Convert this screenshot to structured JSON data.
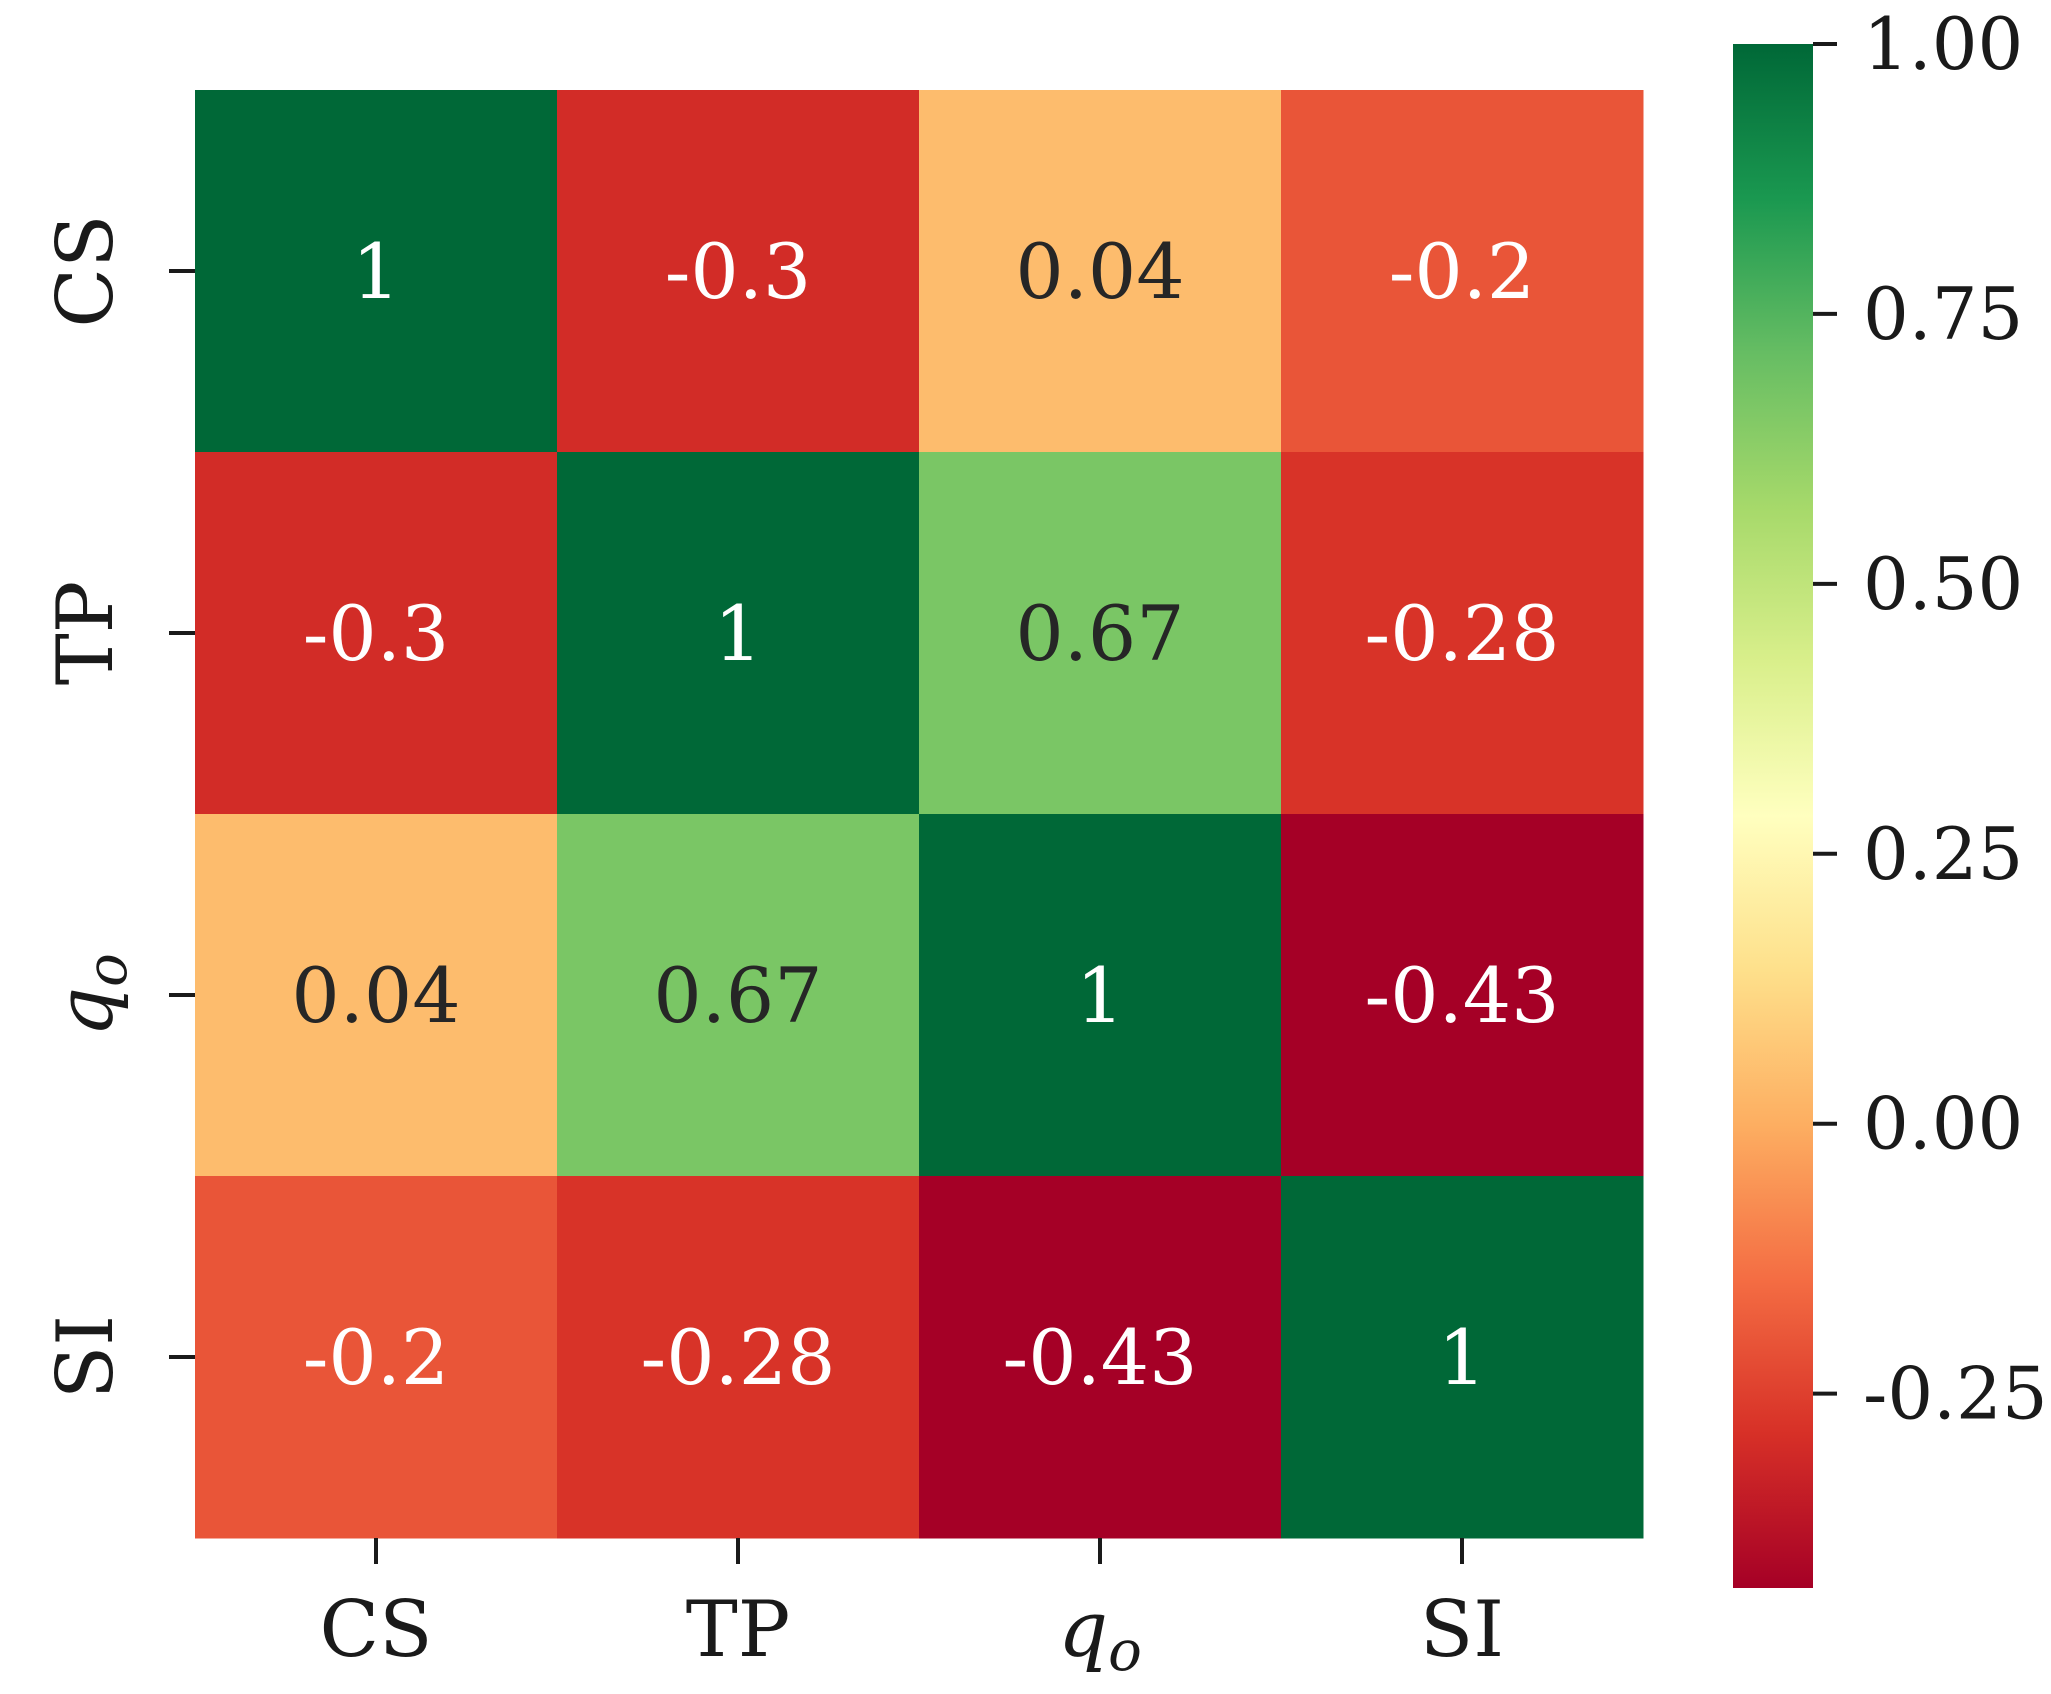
{
  "chart_data": {
    "type": "heatmap",
    "title": "",
    "row_labels": [
      {
        "base": "CS",
        "sub": ""
      },
      {
        "base": "TP",
        "sub": ""
      },
      {
        "base": "q",
        "sub": "o"
      },
      {
        "base": "SI",
        "sub": ""
      }
    ],
    "col_labels": [
      {
        "base": "CS",
        "sub": ""
      },
      {
        "base": "TP",
        "sub": ""
      },
      {
        "base": "q",
        "sub": "o"
      },
      {
        "base": "SI",
        "sub": ""
      }
    ],
    "values": [
      [
        1,
        -0.3,
        0.04,
        -0.2
      ],
      [
        -0.3,
        1,
        0.67,
        -0.28
      ],
      [
        0.04,
        0.67,
        1,
        -0.43
      ],
      [
        -0.2,
        -0.28,
        -0.43,
        1
      ]
    ],
    "value_labels": [
      [
        "1",
        "-0.3",
        "0.04",
        "-0.2"
      ],
      [
        "-0.3",
        "1",
        "0.67",
        "-0.28"
      ],
      [
        "0.04",
        "0.67",
        "1",
        "-0.43"
      ],
      [
        "-0.2",
        "-0.28",
        "-0.43",
        "1"
      ]
    ],
    "colormap": "RdYlGn",
    "colorbar": {
      "vmin": -0.43,
      "vmax": 1.0,
      "ticks": [
        1.0,
        0.75,
        0.5,
        0.25,
        0.0,
        -0.25
      ],
      "tick_labels": [
        "1.00",
        "0.75",
        "0.50",
        "0.25",
        "0.00",
        "-0.25"
      ]
    },
    "colors": {
      "stops": [
        "#a50026",
        "#d73027",
        "#f46d43",
        "#fdae61",
        "#fee08b",
        "#ffffbf",
        "#d9ef8b",
        "#a6d96a",
        "#66bd63",
        "#1a9850",
        "#006837"
      ],
      "text_light": "#ffffff",
      "text_dark": "#262626"
    }
  }
}
